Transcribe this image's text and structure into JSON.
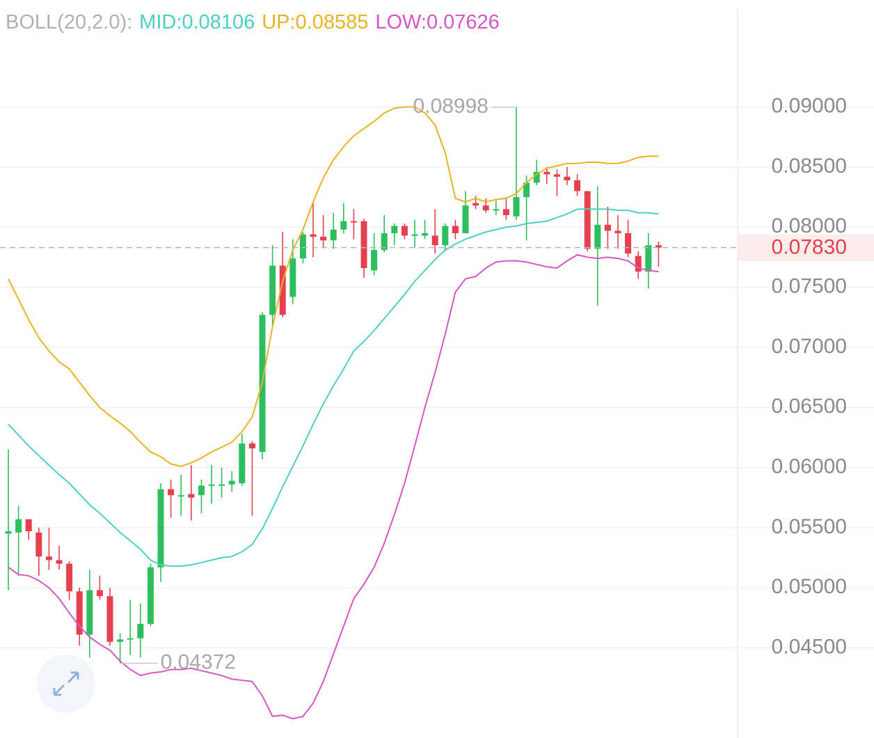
{
  "chart_data": {
    "type": "candlestick",
    "indicator": "BOLL(20,2.0):",
    "up_color": "#2ebd5f",
    "down_color": "#e5404f",
    "open": [
      0.0545,
      0.0546,
      0.0557,
      0.0546,
      0.0526,
      0.0523,
      0.052,
      0.0497,
      0.0461,
      0.0498,
      0.0493,
      0.0455,
      0.0457,
      0.0458,
      0.047,
      0.0517,
      0.0582,
      0.0576,
      0.0578,
      0.0577,
      0.0585,
      0.0585,
      0.0586,
      0.0587,
      0.062,
      0.0613,
      0.0727,
      0.0768,
      0.0742,
      0.0774,
      0.0794,
      0.0792,
      0.0789,
      0.0798,
      0.0805,
      0.0805,
      0.0764,
      0.0781,
      0.0795,
      0.0801,
      0.0793,
      0.0793,
      0.0793,
      0.0785,
      0.0801,
      0.0795,
      0.082,
      0.0818,
      0.0814,
      0.0815,
      0.0809,
      0.0825,
      0.0837,
      0.0846,
      0.0844,
      0.0842,
      0.0839,
      0.083,
      0.0782,
      0.0802,
      0.0797,
      0.0795,
      0.0776,
      0.0763,
      0.0785
    ],
    "high": [
      0.0615,
      0.0568,
      0.0557,
      0.055,
      0.055,
      0.0535,
      0.0522,
      0.05,
      0.0515,
      0.051,
      0.05,
      0.0462,
      0.049,
      0.0487,
      0.052,
      0.0587,
      0.059,
      0.0594,
      0.0602,
      0.059,
      0.0602,
      0.06,
      0.0597,
      0.0628,
      0.0622,
      0.0729,
      0.0785,
      0.0796,
      0.079,
      0.0796,
      0.082,
      0.081,
      0.0812,
      0.082,
      0.0815,
      0.0807,
      0.0795,
      0.081,
      0.0803,
      0.0803,
      0.0806,
      0.0806,
      0.0815,
      0.0803,
      0.0806,
      0.083,
      0.0826,
      0.0824,
      0.0822,
      0.0825,
      0.08998,
      0.0843,
      0.0856,
      0.085,
      0.0848,
      0.085,
      0.0844,
      0.083,
      0.0834,
      0.0817,
      0.081,
      0.0806,
      0.078,
      0.0795,
      0.0788
    ],
    "low": [
      0.0498,
      0.051,
      0.054,
      0.051,
      0.0515,
      0.0515,
      0.049,
      0.0452,
      0.0442,
      0.049,
      0.0452,
      0.04372,
      0.0444,
      0.0442,
      0.0468,
      0.0505,
      0.0558,
      0.056,
      0.0556,
      0.0562,
      0.057,
      0.0575,
      0.058,
      0.0585,
      0.056,
      0.0607,
      0.0718,
      0.0725,
      0.0736,
      0.077,
      0.0775,
      0.0783,
      0.0782,
      0.0795,
      0.079,
      0.0758,
      0.076,
      0.0779,
      0.0785,
      0.079,
      0.0783,
      0.079,
      0.0778,
      0.078,
      0.079,
      0.0795,
      0.0815,
      0.0812,
      0.081,
      0.0806,
      0.0806,
      0.0789,
      0.0835,
      0.0836,
      0.0826,
      0.0835,
      0.0826,
      0.078,
      0.0735,
      0.0782,
      0.0782,
      0.0775,
      0.0757,
      0.0749,
      0.0767
    ],
    "close": [
      0.0547,
      0.0557,
      0.0547,
      0.0526,
      0.0523,
      0.052,
      0.0497,
      0.0461,
      0.0498,
      0.0493,
      0.0455,
      0.0457,
      0.0458,
      0.047,
      0.0517,
      0.0582,
      0.0577,
      0.0577,
      0.0575,
      0.0585,
      0.0586,
      0.0586,
      0.0589,
      0.062,
      0.0616,
      0.0727,
      0.0768,
      0.0727,
      0.0774,
      0.0794,
      0.0792,
      0.0789,
      0.0798,
      0.0805,
      0.0804,
      0.0766,
      0.0781,
      0.0795,
      0.0801,
      0.0793,
      0.0794,
      0.0795,
      0.0785,
      0.0801,
      0.0795,
      0.0818,
      0.0818,
      0.0814,
      0.0815,
      0.081,
      0.0825,
      0.0837,
      0.0846,
      0.0844,
      0.0842,
      0.0839,
      0.083,
      0.0782,
      0.0802,
      0.0797,
      0.0795,
      0.0778,
      0.0763,
      0.0785,
      0.0783
    ],
    "series": [
      {
        "name": "MID:0.08106",
        "color": "#4fcfbf",
        "values": [
          0.0636,
          0.0627,
          0.0618,
          0.061,
          0.0602,
          0.0594,
          0.0587,
          0.0578,
          0.0569,
          0.0562,
          0.0554,
          0.0546,
          0.0539,
          0.0532,
          0.0523,
          0.0519,
          0.0518,
          0.0518,
          0.0519,
          0.0521,
          0.0523,
          0.0525,
          0.0526,
          0.053,
          0.0536,
          0.0549,
          0.0566,
          0.0584,
          0.0601,
          0.0618,
          0.0636,
          0.0653,
          0.0668,
          0.0682,
          0.0697,
          0.0705,
          0.0714,
          0.0724,
          0.0734,
          0.0744,
          0.0755,
          0.0764,
          0.0773,
          0.0781,
          0.0786,
          0.079,
          0.0793,
          0.0796,
          0.0798,
          0.08,
          0.0801,
          0.0803,
          0.0804,
          0.0805,
          0.0808,
          0.0811,
          0.0815,
          0.0815,
          0.0815,
          0.0815,
          0.0814,
          0.0814,
          0.0812,
          0.0812,
          0.0811
        ]
      },
      {
        "name": "UP:0.08585",
        "color": "#e8b422",
        "values": [
          0.0757,
          0.074,
          0.0723,
          0.0708,
          0.0697,
          0.0688,
          0.0682,
          0.0671,
          0.066,
          0.065,
          0.0643,
          0.0637,
          0.063,
          0.0621,
          0.0613,
          0.0609,
          0.0603,
          0.0601,
          0.0604,
          0.0608,
          0.0613,
          0.0617,
          0.0621,
          0.063,
          0.0642,
          0.0671,
          0.0717,
          0.0755,
          0.0781,
          0.0798,
          0.0821,
          0.0841,
          0.0856,
          0.0867,
          0.0876,
          0.0882,
          0.0888,
          0.0895,
          0.0899,
          0.09,
          0.09,
          0.0895,
          0.0885,
          0.0862,
          0.0824,
          0.0821,
          0.0824,
          0.0821,
          0.0823,
          0.0824,
          0.0828,
          0.0837,
          0.0844,
          0.0849,
          0.0851,
          0.0853,
          0.0853,
          0.0854,
          0.0854,
          0.0853,
          0.0853,
          0.0855,
          0.0858,
          0.0859,
          0.0859
        ]
      },
      {
        "name": "LOW:0.07626",
        "color": "#d656c4",
        "values": [
          0.0517,
          0.0511,
          0.051,
          0.0506,
          0.05,
          0.0491,
          0.0479,
          0.0468,
          0.0459,
          0.0453,
          0.0448,
          0.0439,
          0.0432,
          0.0427,
          0.0429,
          0.043,
          0.0432,
          0.0432,
          0.0433,
          0.0431,
          0.0429,
          0.0427,
          0.0424,
          0.0423,
          0.0422,
          0.041,
          0.0393,
          0.0394,
          0.0391,
          0.0393,
          0.0404,
          0.0422,
          0.0445,
          0.0468,
          0.0491,
          0.0503,
          0.0517,
          0.0537,
          0.0561,
          0.0587,
          0.0618,
          0.065,
          0.0679,
          0.0711,
          0.0746,
          0.0757,
          0.0759,
          0.0766,
          0.0771,
          0.0772,
          0.0772,
          0.0771,
          0.0769,
          0.0767,
          0.0766,
          0.0772,
          0.0777,
          0.0775,
          0.0774,
          0.0775,
          0.0774,
          0.0772,
          0.0766,
          0.0764,
          0.0763
        ]
      }
    ],
    "max_annotation": 0.08998,
    "min_annotation": 0.04372,
    "last_price": {
      "value": 0.0783,
      "label": "0.07830"
    },
    "ylim": [
      0.0375,
      0.0989
    ],
    "yticks": [
      {
        "value": 0.045,
        "label": "0.04500"
      },
      {
        "value": 0.05,
        "label": "0.05000"
      },
      {
        "value": 0.055,
        "label": "0.05500"
      },
      {
        "value": 0.06,
        "label": "0.06000"
      },
      {
        "value": 0.065,
        "label": "0.06500"
      },
      {
        "value": 0.07,
        "label": "0.07000"
      },
      {
        "value": 0.075,
        "label": "0.07500"
      },
      {
        "value": 0.08,
        "label": "0.08000"
      },
      {
        "value": 0.085,
        "label": "0.08500"
      },
      {
        "value": 0.09,
        "label": "0.09000"
      }
    ],
    "grid": true
  }
}
